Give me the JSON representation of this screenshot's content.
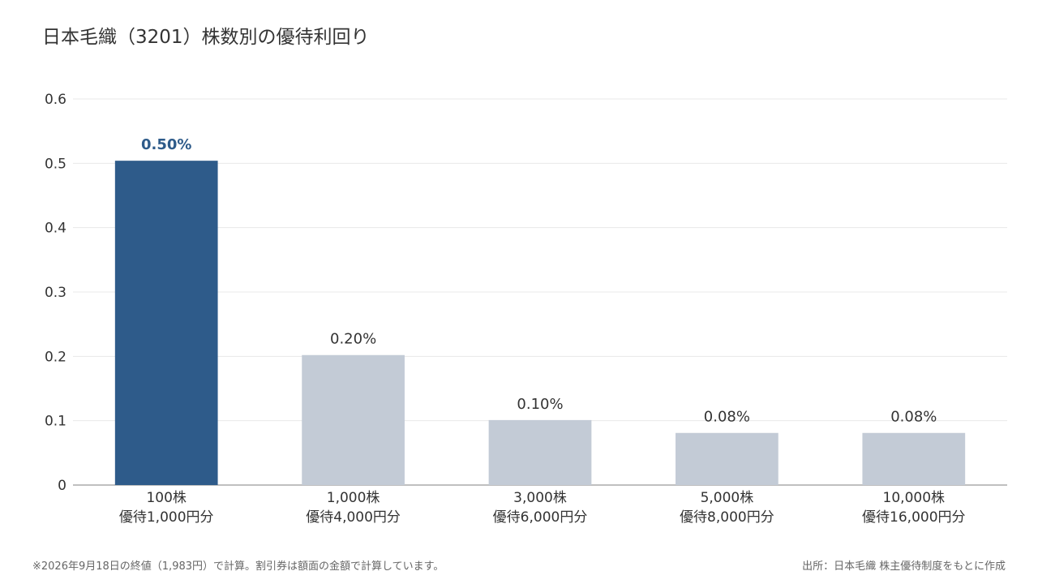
{
  "chart_data": {
    "type": "bar",
    "title": "日本毛織（3201）株数別の優待利回り",
    "categories": [
      [
        "100株",
        "優待1,000円分"
      ],
      [
        "1,000株",
        "優待4,000円分"
      ],
      [
        "3,000株",
        "優待6,000円分"
      ],
      [
        "5,000株",
        "優待8,000円分"
      ],
      [
        "10,000株",
        "優待16,000円分"
      ]
    ],
    "values": [
      0.504,
      0.202,
      0.101,
      0.081,
      0.081
    ],
    "data_labels": [
      "0.50%",
      "0.20%",
      "0.10%",
      "0.08%",
      "0.08%"
    ],
    "highlight_index": 0,
    "ylim": [
      0,
      0.6
    ],
    "yticks": [
      0,
      0.1,
      0.2,
      0.3,
      0.4,
      0.5,
      0.6
    ],
    "ytick_labels": [
      "0",
      "0.1",
      "0.2",
      "0.3",
      "0.4",
      "0.5",
      "0.6"
    ],
    "xlabel": "",
    "ylabel": "",
    "grid": true,
    "colors": {
      "highlight": "#2e5b8a",
      "default": "#c3cbd6",
      "grid": "#e8e8e8",
      "axis": "#999999"
    }
  },
  "footnote": "※2026年9月18日の終値（1,983円）で計算。割引券は額面の金額で計算しています。",
  "source": "出所：日本毛織 株主優待制度をもとに作成"
}
